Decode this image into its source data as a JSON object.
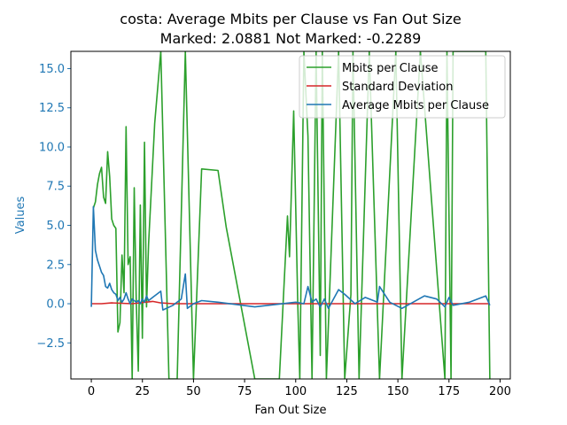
{
  "chart_data": {
    "type": "line",
    "title_line1": "costa: Average Mbits per Clause vs Fan Out Size",
    "title_line2": "Marked: 2.0881 Not Marked: -0.2289",
    "xlabel": "Fan Out Size",
    "ylabel": "Values",
    "xlim": [
      -10,
      205
    ],
    "ylim": [
      -4.8,
      16.1
    ],
    "xticks": [
      0,
      25,
      50,
      75,
      100,
      125,
      150,
      175,
      200
    ],
    "yticks": [
      -2.5,
      0.0,
      2.5,
      5.0,
      7.5,
      10.0,
      12.5,
      15.0
    ],
    "ytick_labels": [
      "−2.5",
      "0.0",
      "2.5",
      "5.0",
      "7.5",
      "10.0",
      "12.5",
      "15.0"
    ],
    "legend_position": "top-right",
    "series": [
      {
        "name": "Mbits per Clause",
        "color": "#2ca02c",
        "x": [
          1,
          2,
          3,
          4,
          5,
          6,
          7,
          8,
          9,
          10,
          11,
          12,
          13,
          14,
          15,
          16,
          17,
          18,
          19,
          20,
          21,
          22,
          23,
          24,
          25,
          26,
          27,
          28,
          31,
          34,
          38,
          42,
          46,
          50,
          54,
          62,
          66,
          80,
          92,
          96,
          97,
          99,
          101,
          102,
          104,
          106,
          108,
          110,
          112,
          113,
          115,
          121,
          124,
          127,
          128,
          131,
          136,
          141,
          149,
          152,
          161,
          173,
          174,
          176,
          177,
          193,
          195
        ],
        "values": [
          6.1,
          6.5,
          7.6,
          8.3,
          8.7,
          6.8,
          6.4,
          9.7,
          8.1,
          5.4,
          5.0,
          4.8,
          -1.8,
          -1.2,
          3.1,
          0.7,
          11.3,
          2.5,
          3.0,
          -4.8,
          7.4,
          0.2,
          -4.3,
          6.3,
          -2.2,
          10.3,
          -0.2,
          3.8,
          11.5,
          16.1,
          -4.8,
          -4.8,
          16.1,
          -4.8,
          8.6,
          8.5,
          4.9,
          -4.8,
          -4.8,
          5.6,
          3.0,
          12.3,
          0.0,
          -4.8,
          16.1,
          10.7,
          -4.8,
          16.1,
          -3.3,
          16.1,
          -4.8,
          16.1,
          -4.8,
          0.6,
          16.1,
          -4.8,
          16.1,
          -4.8,
          16.1,
          -4.8,
          16.1,
          -4.8,
          16.1,
          -4.8,
          16.1,
          16.1,
          -4.8
        ]
      },
      {
        "name": "Standard Deviation",
        "color": "#d62728",
        "x": [
          0,
          5,
          10,
          20,
          30,
          34,
          40,
          60,
          100,
          150,
          195
        ],
        "values": [
          0.0,
          0.0,
          0.05,
          0.0,
          0.15,
          0.05,
          0.0,
          0.0,
          0.0,
          0.0,
          0.0
        ]
      },
      {
        "name": "Average Mbits per Clause",
        "color": "#1f77b4",
        "x": [
          0,
          1,
          2,
          3,
          4,
          5,
          6,
          7,
          8,
          9,
          10,
          11,
          12,
          13,
          14,
          15,
          16,
          17,
          18,
          19,
          20,
          21,
          22,
          23,
          24,
          25,
          26,
          27,
          28,
          30,
          34,
          35,
          40,
          44,
          46,
          47,
          50,
          54,
          62,
          80,
          100,
          104,
          106,
          108,
          110,
          112,
          114,
          116,
          121,
          124,
          129,
          134,
          140,
          141,
          146,
          152,
          163,
          169,
          173,
          175,
          177,
          185,
          193,
          195
        ],
        "values": [
          -0.2,
          6.2,
          3.4,
          2.8,
          2.4,
          2.0,
          1.8,
          1.1,
          1.0,
          1.3,
          0.9,
          0.7,
          0.6,
          0.2,
          0.4,
          0.1,
          0.3,
          0.7,
          0.3,
          0.0,
          0.3,
          0.2,
          0.1,
          0.2,
          0.0,
          0.3,
          0.1,
          0.5,
          0.2,
          0.4,
          0.8,
          -0.4,
          -0.1,
          0.3,
          1.9,
          -0.3,
          0.0,
          0.2,
          0.1,
          -0.2,
          0.1,
          0.0,
          1.1,
          0.1,
          0.3,
          -0.2,
          0.3,
          -0.3,
          0.9,
          0.6,
          0.0,
          0.4,
          0.1,
          1.1,
          0.1,
          -0.3,
          0.5,
          0.3,
          -0.2,
          0.4,
          -0.1,
          0.1,
          0.5,
          -0.1
        ]
      }
    ]
  }
}
